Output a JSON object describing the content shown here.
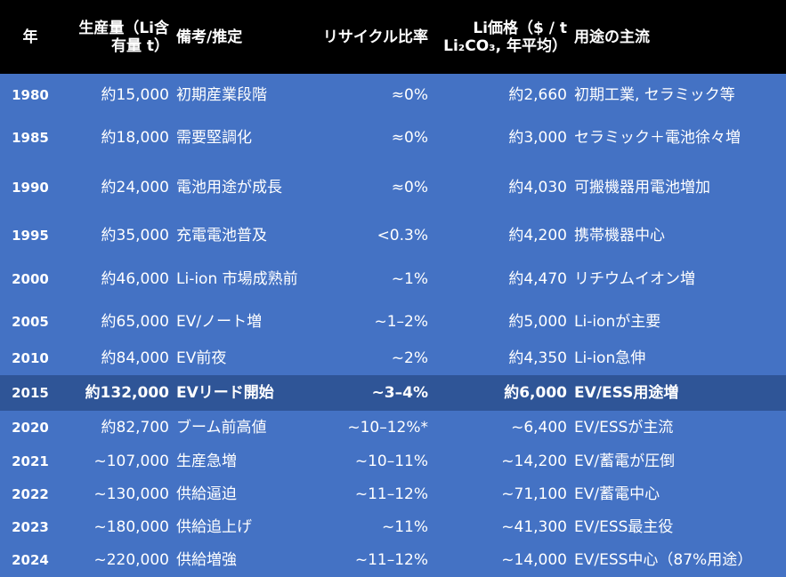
{
  "headers": {
    "year": "年",
    "production": "生産量（Li含有量 t）",
    "note": "備考/推定",
    "recycle": "リサイクル比率",
    "price": "Li価格（$ / t Li₂CO₃, 年平均）",
    "use": "用途の主流"
  },
  "rows": [
    {
      "year": "1980",
      "production": "約15,000",
      "note": "初期産業段階",
      "recycle": "≈0%",
      "price": "約2,660",
      "use": "初期工業, セラミック等"
    },
    {
      "year": "1985",
      "production": "約18,000",
      "note": "需要堅調化",
      "recycle": "≈0%",
      "price": "約3,000",
      "use": "セラミック＋電池徐々増"
    },
    {
      "year": "1990",
      "production": "約24,000",
      "note": "電池用途が成長",
      "recycle": "≈0%",
      "price": "約4,030",
      "use": "可搬機器用電池増加"
    },
    {
      "year": "1995",
      "production": "約35,000",
      "note": "充電電池普及",
      "recycle": "<0.3%",
      "price": "約4,200",
      "use": "携帯機器中心"
    },
    {
      "year": "2000",
      "production": "約46,000",
      "note": "Li-ion 市場成熟前",
      "recycle": "~1%",
      "price": "約4,470",
      "use": "リチウムイオン増"
    },
    {
      "year": "2005",
      "production": "約65,000",
      "note": "EV/ノート増",
      "recycle": "~1–2%",
      "price": "約5,000",
      "use": "Li-ionが主要"
    },
    {
      "year": "2010",
      "production": "約84,000",
      "note": "EV前夜",
      "recycle": "~2%",
      "price": "約4,350",
      "use": "Li-ion急伸"
    },
    {
      "year": "2015",
      "production": "約132,000",
      "note": "EVリード開始",
      "recycle": "~3–4%",
      "price": "約6,000",
      "use": "EV/ESS用途増",
      "highlight": true
    },
    {
      "year": "2020",
      "production": "約82,700",
      "note": "ブーム前高値",
      "recycle": "~10–12%*",
      "price": "~6,400",
      "use": "EV/ESSが主流"
    },
    {
      "year": "2021",
      "production": "~107,000",
      "note": "生産急増",
      "recycle": "~10–11%",
      "price": "~14,200",
      "use": "EV/蓄電が圧倒"
    },
    {
      "year": "2022",
      "production": "~130,000",
      "note": "供給逼迫",
      "recycle": "~11–12%",
      "price": "~71,100",
      "use": "EV/蓄電中心"
    },
    {
      "year": "2023",
      "production": "~180,000",
      "note": "供給追上げ",
      "recycle": "~11%",
      "price": "~41,300",
      "use": "EV/ESS最主役"
    },
    {
      "year": "2024",
      "production": "~220,000",
      "note": "供給増強",
      "recycle": "~11–12%",
      "price": "~14,000",
      "use": "EV/ESS中心（87%用途）"
    }
  ],
  "colors": {
    "header_bg": "#000000",
    "row_bg": "#4472c4",
    "highlight_bg": "#2f5597",
    "text": "#ffffff"
  }
}
